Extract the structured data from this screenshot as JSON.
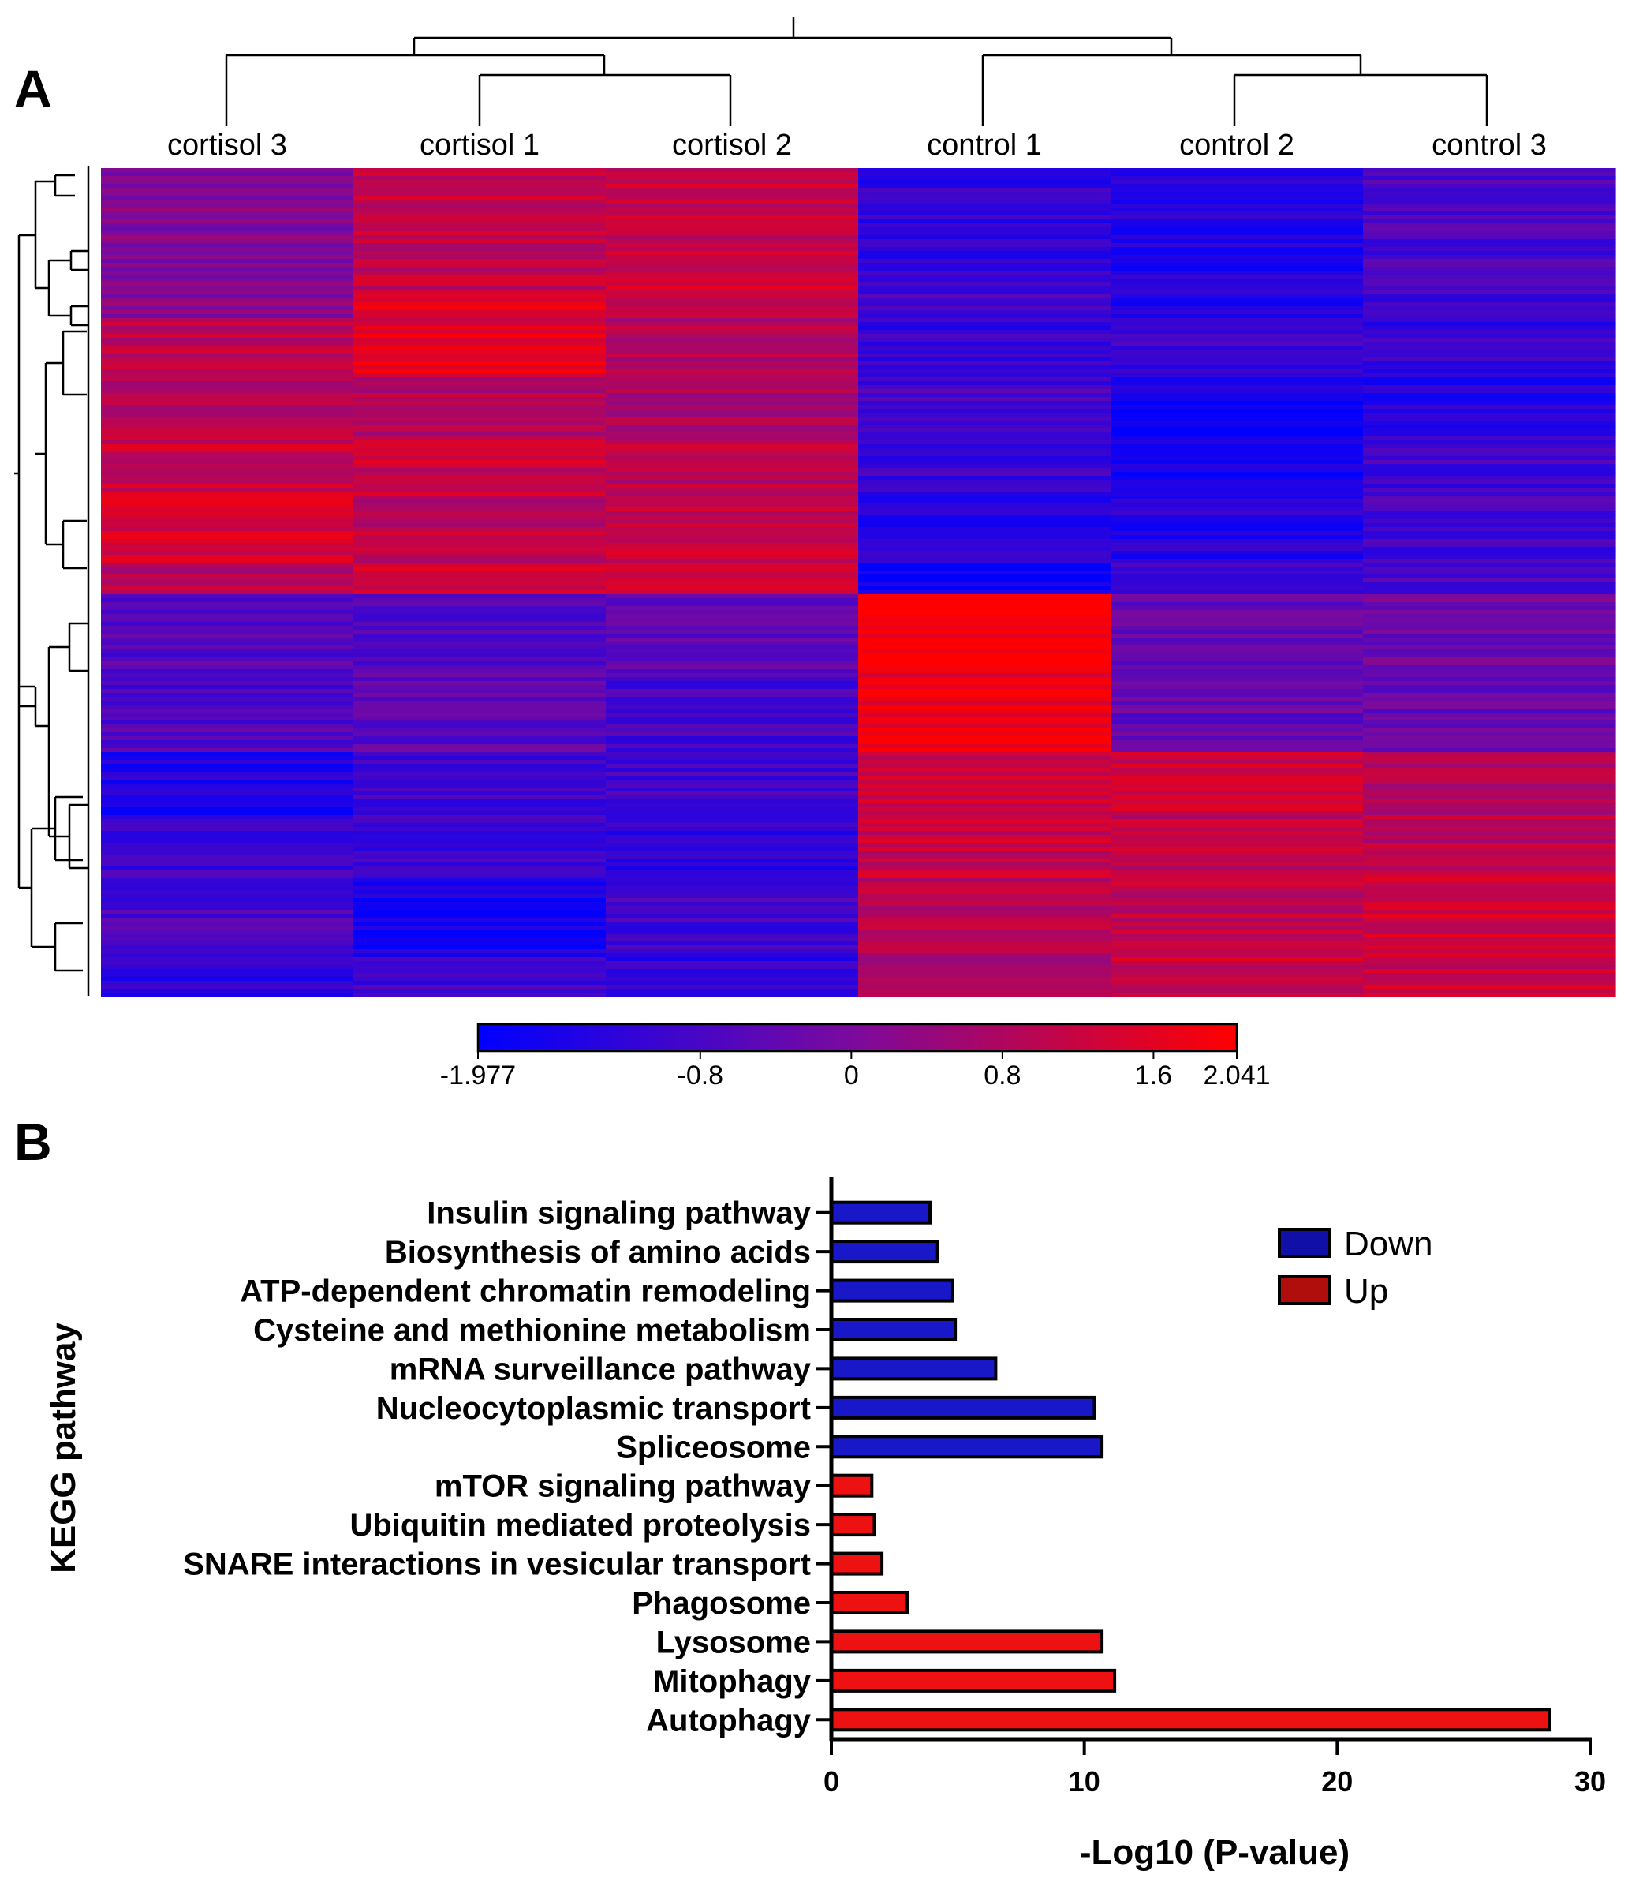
{
  "panel_a": {
    "letter": "A",
    "colorbar": {
      "min": -1.977,
      "max": 2.041,
      "min_color": "#0000ff",
      "mid_color": "#7a0a9e",
      "max_color": "#ff0000",
      "tick_values": [
        -1.977,
        -0.8,
        0,
        0.8,
        1.6,
        2.041
      ],
      "tick_labels": [
        "-1.977",
        "-0.8",
        "0",
        "0.8",
        "1.6",
        "2.041"
      ]
    }
  },
  "panel_b": {
    "letter": "B"
  },
  "chart_data": [
    {
      "type": "heatmap",
      "columns": [
        "cortisol 3",
        "cortisol 1",
        "cortisol 2",
        "control 1",
        "control 2",
        "control 3"
      ],
      "column_dendrogram": true,
      "row_dendrogram": true,
      "value_range": [
        -1.977,
        2.041
      ],
      "row_blocks": [
        {
          "rows": 32,
          "values": [
            0.15,
            1.1,
            1.2,
            -1.2,
            -1.4,
            -0.8
          ]
        },
        {
          "rows": 6,
          "values": [
            0.2,
            1.7,
            1.3,
            -1.0,
            -1.5,
            -0.9
          ]
        },
        {
          "rows": 15,
          "values": [
            1.0,
            1.6,
            0.9,
            -1.1,
            -1.0,
            -1.1
          ]
        },
        {
          "rows": 15,
          "values": [
            1.0,
            0.9,
            0.8,
            -0.9,
            -1.7,
            -1.4
          ]
        },
        {
          "rows": 15,
          "values": [
            1.2,
            1.2,
            1.0,
            -1.1,
            -1.6,
            -0.9
          ]
        },
        {
          "rows": 17,
          "values": [
            1.4,
            1.0,
            1.2,
            -1.4,
            -1.4,
            -0.9
          ]
        },
        {
          "rows": 8,
          "values": [
            0.9,
            1.4,
            1.3,
            -1.8,
            -0.9,
            -0.8
          ]
        },
        {
          "rows": 20,
          "values": [
            -0.6,
            -0.7,
            -0.5,
            2.0,
            -0.3,
            -0.2
          ]
        },
        {
          "rows": 20,
          "values": [
            -0.7,
            -0.5,
            -0.9,
            1.8,
            -0.4,
            -0.3
          ]
        },
        {
          "rows": 16,
          "values": [
            -1.5,
            -0.9,
            -0.9,
            1.3,
            1.2,
            0.9
          ]
        },
        {
          "rows": 16,
          "values": [
            -1.0,
            -1.0,
            -1.3,
            1.2,
            1.0,
            1.0
          ]
        },
        {
          "rows": 20,
          "values": [
            -0.8,
            -1.6,
            -0.9,
            1.0,
            1.1,
            1.3
          ]
        },
        {
          "rows": 10,
          "values": [
            -1.3,
            -1.0,
            -1.2,
            0.9,
            1.2,
            1.2
          ]
        }
      ]
    },
    {
      "type": "bar",
      "orientation": "horizontal",
      "categories": [
        "Insulin signaling pathway",
        "Biosynthesis of amino acids",
        "ATP-dependent chromatin remodeling",
        "Cysteine and methionine metabolism",
        "mRNA surveillance pathway",
        "Nucleocytoplasmic transport",
        "Spliceosome",
        "mTOR signaling pathway",
        "Ubiquitin mediated proteolysis",
        "SNARE interactions in vesicular transport",
        "Phagosome",
        "Lysosome",
        "Mitophagy",
        "Autophagy"
      ],
      "values": [
        3.9,
        4.2,
        4.8,
        4.9,
        6.5,
        10.4,
        10.7,
        1.6,
        1.7,
        2.0,
        3.0,
        10.7,
        11.2,
        28.4
      ],
      "groups": [
        "Down",
        "Down",
        "Down",
        "Down",
        "Down",
        "Down",
        "Down",
        "Up",
        "Up",
        "Up",
        "Up",
        "Up",
        "Up",
        "Up"
      ],
      "legend": [
        {
          "name": "Down",
          "color": "#1010a8"
        },
        {
          "name": "Up",
          "color": "#b00d0d"
        }
      ],
      "bar_colors": {
        "Down": "#1818c8",
        "Up": "#ee1111"
      },
      "xlabel": "-Log10 (P-value)",
      "ylabel": "KEGG pathway",
      "xlim": [
        0,
        30
      ],
      "xticks": [
        0,
        10,
        20,
        30
      ],
      "legend_position": "top-right",
      "grid": false
    }
  ]
}
